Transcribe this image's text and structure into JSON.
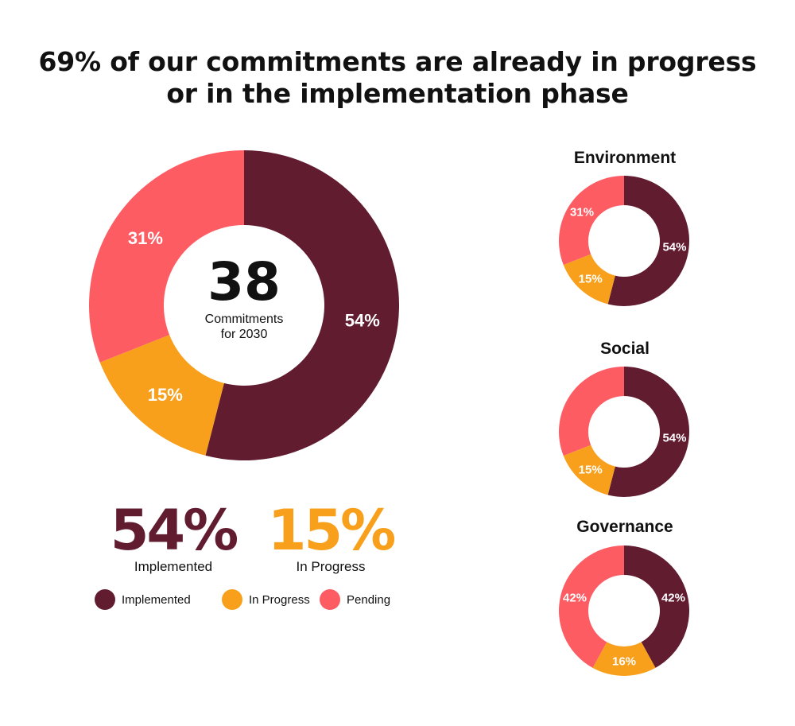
{
  "title": {
    "line1": "69% of our commitments are already in progress",
    "line2": "or in the implementation phase"
  },
  "colors": {
    "implemented": "#611c30",
    "in_progress": "#f8a01c",
    "pending": "#fd5c63"
  },
  "main_donut": {
    "center_number": "38",
    "center_line1": "Commitments",
    "center_line2": "for 2030"
  },
  "stats": [
    {
      "value": "54%",
      "label": "Implemented",
      "color": "#611c30"
    },
    {
      "value": "15%",
      "label": "In Progress",
      "color": "#f8a01c"
    }
  ],
  "legend": [
    {
      "label": "Implemented",
      "color": "#611c30"
    },
    {
      "label": "In Progress",
      "color": "#f8a01c"
    },
    {
      "label": "Pending",
      "color": "#fd5c63"
    }
  ],
  "chart_data": [
    {
      "type": "pie",
      "title": "",
      "categories": [
        "Implemented",
        "In Progress",
        "Pending"
      ],
      "values": [
        54,
        15,
        31
      ],
      "labels": [
        "54%",
        "15%",
        "31%"
      ]
    },
    {
      "type": "pie",
      "title": "Environment",
      "categories": [
        "Implemented",
        "In Progress",
        "Pending"
      ],
      "values": [
        54,
        15,
        31
      ],
      "labels": [
        "54%",
        "15%",
        "31%"
      ]
    },
    {
      "type": "pie",
      "title": "Social",
      "categories": [
        "Implemented",
        "In Progress",
        "Pending"
      ],
      "values": [
        54,
        15,
        31
      ],
      "labels": [
        "54%",
        "15%",
        ""
      ]
    },
    {
      "type": "pie",
      "title": "Governance",
      "categories": [
        "Implemented",
        "In Progress",
        "Pending"
      ],
      "values": [
        42,
        16,
        42
      ],
      "labels": [
        "42%",
        "16%",
        "42%"
      ]
    }
  ]
}
